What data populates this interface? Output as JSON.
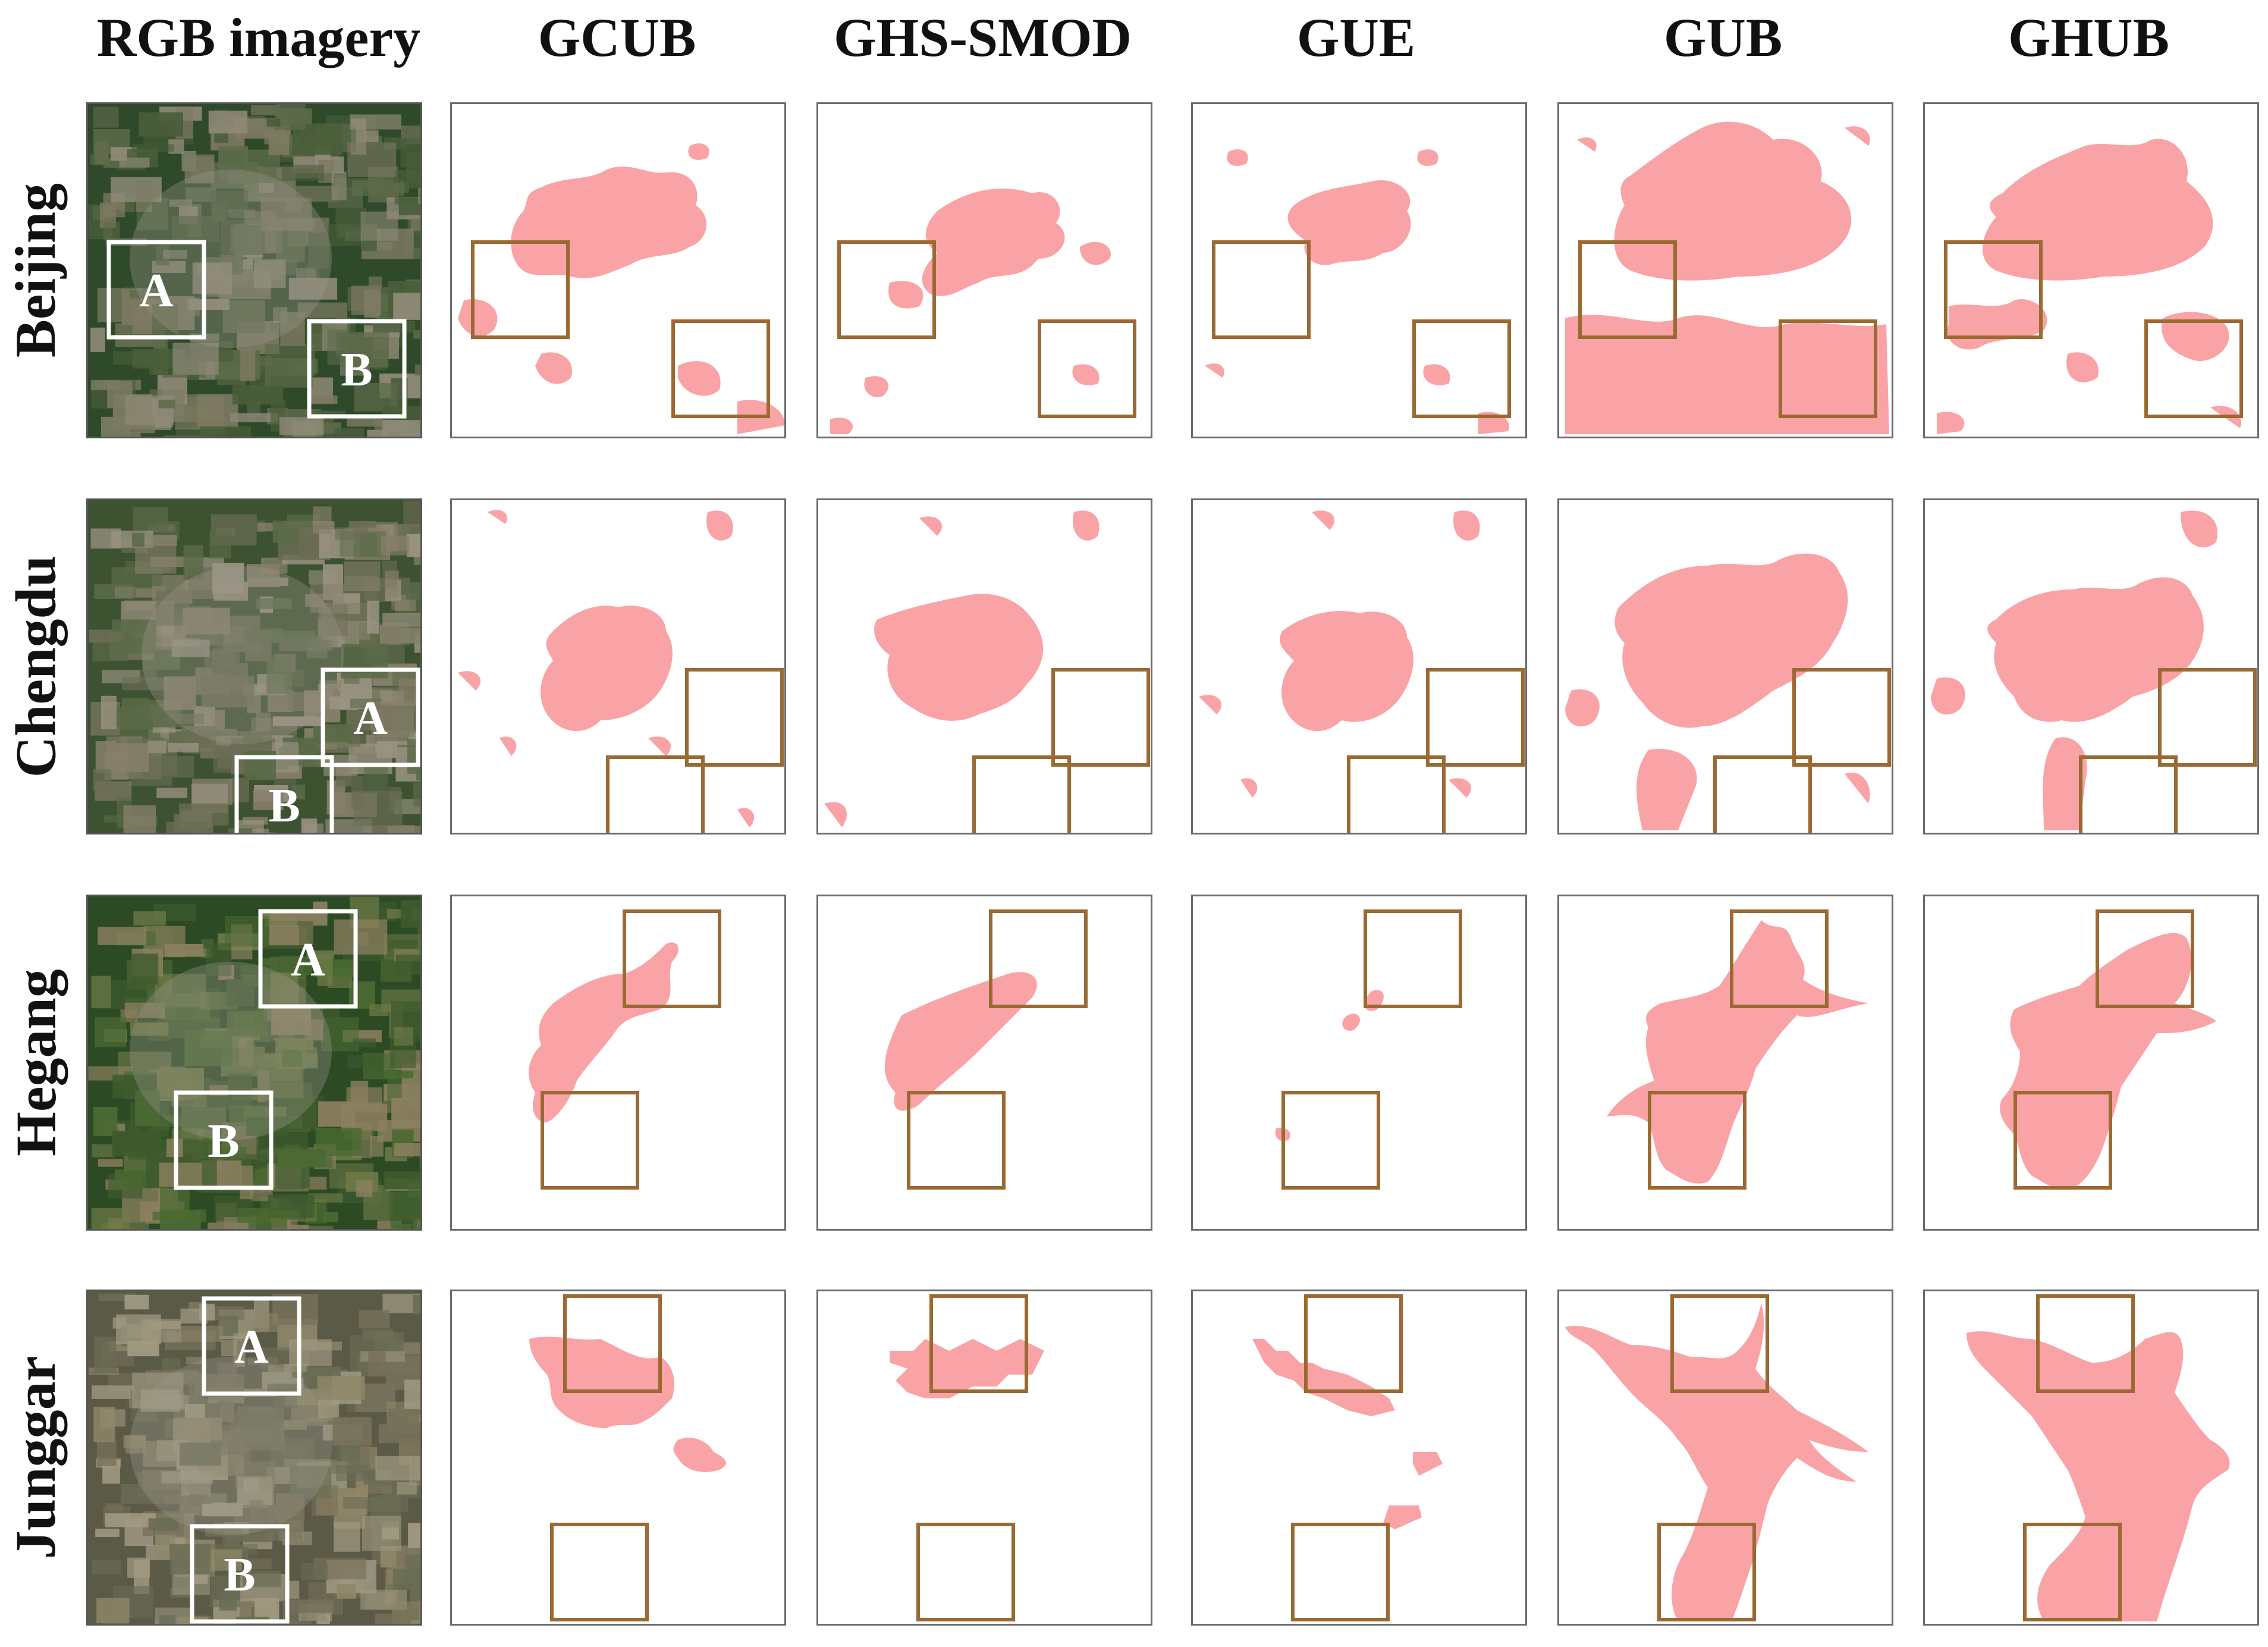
{
  "figure": {
    "columns": [
      "RGB imagery",
      "GCUB",
      "GHS-SMOD",
      "GUE",
      "GUB",
      "GHUB"
    ],
    "rows": [
      "Beijing",
      "Chengdu",
      "Hegang",
      "Junggar"
    ],
    "box_labels": {
      "a": "A",
      "b": "B"
    }
  },
  "colors": {
    "urban_fill": "#f9a3a6",
    "box_outline_map": "#9b6a33",
    "box_outline_rgb": "#ffffff",
    "panel_border": "#6b6b6b"
  }
}
